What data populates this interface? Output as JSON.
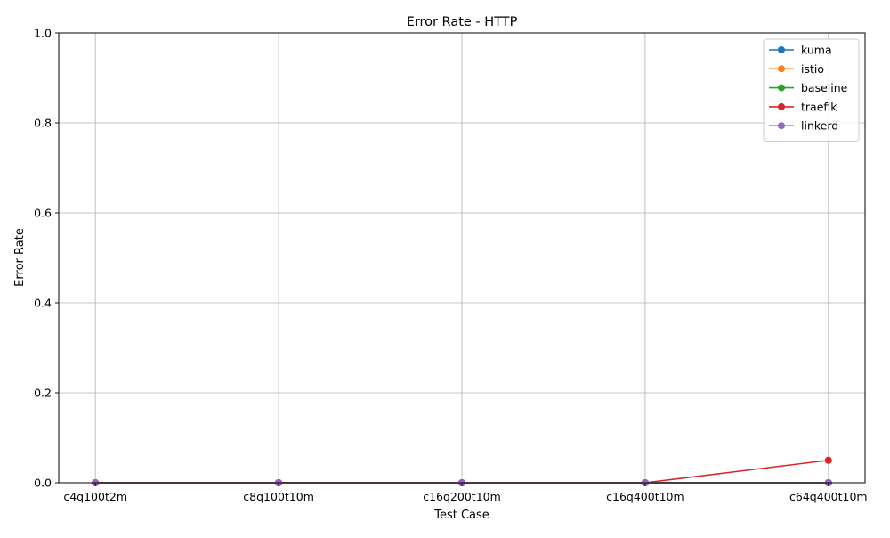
{
  "chart_data": {
    "type": "line",
    "title": "Error Rate - HTTP",
    "xlabel": "Test Case",
    "ylabel": "Error Rate",
    "categories": [
      "c4q100t2m",
      "c8q100t10m",
      "c16q200t10m",
      "c16q400t10m",
      "c64q400t10m"
    ],
    "ylim": [
      0,
      1
    ],
    "yticks": [
      "0.0",
      "0.2",
      "0.4",
      "0.6",
      "0.8",
      "1.0"
    ],
    "grid": true,
    "legend_position": "top-right",
    "markers": "circle",
    "series": [
      {
        "name": "kuma",
        "color": "#1f77b4",
        "values": [
          0,
          0,
          0,
          0,
          0
        ]
      },
      {
        "name": "istio",
        "color": "#ff7f0e",
        "values": [
          0,
          0,
          0,
          0,
          0
        ]
      },
      {
        "name": "baseline",
        "color": "#2ca02c",
        "values": [
          0,
          0,
          0,
          0,
          0
        ]
      },
      {
        "name": "traefik",
        "color": "#d62728",
        "values": [
          0,
          0,
          0,
          0,
          0.05
        ]
      },
      {
        "name": "linkerd",
        "color": "#9467bd",
        "values": [
          0,
          0,
          0,
          0,
          0
        ]
      }
    ]
  }
}
